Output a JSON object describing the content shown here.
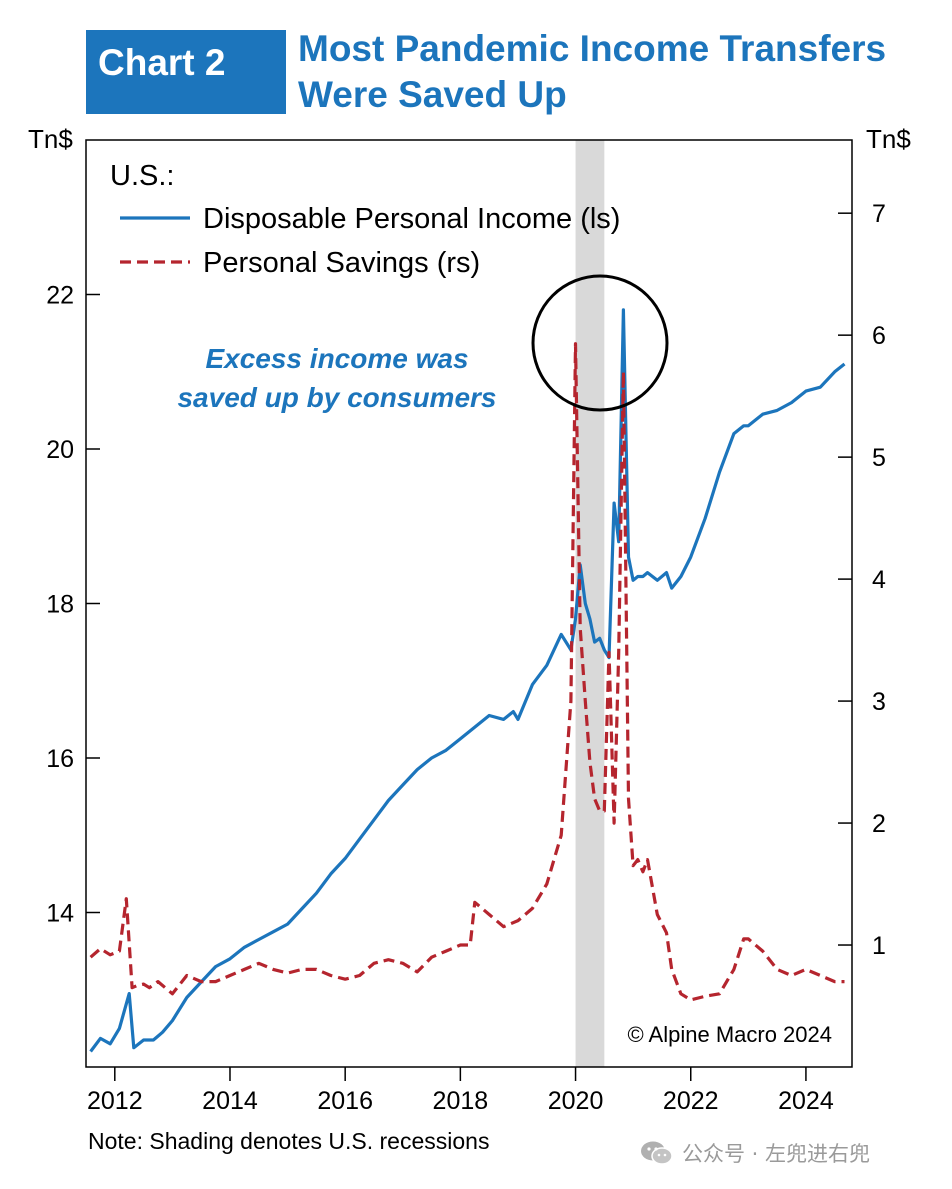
{
  "header": {
    "box_label": "Chart 2",
    "title_line1": "Most Pandemic Income Transfers",
    "title_line2": "Were Saved Up",
    "box_color": "#1c75bc"
  },
  "note": "Note: Shading denotes U.S. recessions",
  "watermark": {
    "text": "公众号 · 左兜进右兜",
    "icon": "wechat-icon"
  },
  "chart_data": {
    "type": "line",
    "left_axis_label": "Tn$",
    "right_axis_label": "Tn$",
    "legend_title": "U.S.:",
    "legend_placement": "top-left",
    "annotation": "Excess income was saved up by consumers",
    "copyright": "© Alpine Macro 2024",
    "xlim": [
      2011.5,
      2024.8
    ],
    "ylim_left": [
      12.0,
      24.0
    ],
    "ylim_right": [
      0.0,
      7.6
    ],
    "x_ticks": [
      2012,
      2014,
      2016,
      2018,
      2020,
      2022,
      2024
    ],
    "x_tick_labels": [
      "2012",
      "2014",
      "2016",
      "2018",
      "2020",
      "2022",
      "2024"
    ],
    "y_ticks_left": [
      14,
      16,
      18,
      20,
      22
    ],
    "y_ticks_right": [
      1,
      2,
      3,
      4,
      5,
      6,
      7
    ],
    "recession_shading": [
      2020.0,
      2020.5
    ],
    "grid": false,
    "colors": {
      "income": "#1c75bc",
      "savings": "#b5252e",
      "shading": "#d9d9d9",
      "annotation": "#1c75bc"
    },
    "series": [
      {
        "name": "Disposable Personal Income (ls)",
        "axis": "left",
        "style": "solid",
        "x": [
          2011.58,
          2011.75,
          2011.92,
          2012.08,
          2012.25,
          2012.33,
          2012.5,
          2012.67,
          2012.75,
          2012.83,
          2013.0,
          2013.25,
          2013.5,
          2013.75,
          2014.0,
          2014.25,
          2014.5,
          2014.75,
          2015.0,
          2015.25,
          2015.5,
          2015.75,
          2016.0,
          2016.25,
          2016.5,
          2016.75,
          2017.0,
          2017.25,
          2017.5,
          2017.75,
          2018.0,
          2018.25,
          2018.5,
          2018.75,
          2018.92,
          2019.0,
          2019.25,
          2019.5,
          2019.75,
          2019.92,
          2020.0,
          2020.08,
          2020.17,
          2020.25,
          2020.33,
          2020.42,
          2020.5,
          2020.58,
          2020.67,
          2020.75,
          2020.83,
          2020.92,
          2021.0,
          2021.08,
          2021.17,
          2021.25,
          2021.42,
          2021.58,
          2021.67,
          2021.83,
          2022.0,
          2022.25,
          2022.5,
          2022.75,
          2022.92,
          2023.0,
          2023.25,
          2023.5,
          2023.75,
          2024.0,
          2024.25,
          2024.5,
          2024.67
        ],
        "y": [
          12.2,
          12.37,
          12.3,
          12.5,
          12.95,
          12.25,
          12.35,
          12.35,
          12.4,
          12.45,
          12.6,
          12.9,
          13.1,
          13.3,
          13.4,
          13.55,
          13.65,
          13.75,
          13.85,
          14.05,
          14.25,
          14.5,
          14.7,
          14.95,
          15.2,
          15.45,
          15.65,
          15.85,
          16.0,
          16.1,
          16.25,
          16.4,
          16.55,
          16.5,
          16.6,
          16.5,
          16.95,
          17.2,
          17.6,
          17.4,
          17.8,
          18.5,
          18.0,
          17.8,
          17.5,
          17.55,
          17.4,
          17.3,
          19.3,
          18.8,
          21.8,
          18.6,
          18.3,
          18.35,
          18.35,
          18.4,
          18.3,
          18.4,
          18.2,
          18.35,
          18.6,
          19.1,
          19.7,
          20.2,
          20.3,
          20.3,
          20.45,
          20.5,
          20.6,
          20.75,
          20.8,
          21.0,
          21.1
        ]
      },
      {
        "name": "Personal Savings (rs)",
        "axis": "right",
        "style": "dashed",
        "x": [
          2011.58,
          2011.75,
          2011.92,
          2012.08,
          2012.2,
          2012.3,
          2012.4,
          2012.5,
          2012.6,
          2012.75,
          2013.0,
          2013.25,
          2013.5,
          2013.75,
          2014.0,
          2014.25,
          2014.5,
          2014.75,
          2015.0,
          2015.25,
          2015.5,
          2015.75,
          2016.0,
          2016.25,
          2016.5,
          2016.75,
          2017.0,
          2017.25,
          2017.5,
          2017.75,
          2018.0,
          2018.17,
          2018.25,
          2018.5,
          2018.75,
          2019.0,
          2019.25,
          2019.5,
          2019.75,
          2019.92,
          2020.0,
          2020.08,
          2020.17,
          2020.25,
          2020.33,
          2020.42,
          2020.5,
          2020.58,
          2020.67,
          2020.75,
          2020.83,
          2020.92,
          2021.0,
          2021.08,
          2021.17,
          2021.25,
          2021.42,
          2021.58,
          2021.67,
          2021.83,
          2022.0,
          2022.25,
          2022.5,
          2022.75,
          2022.92,
          2023.0,
          2023.25,
          2023.5,
          2023.75,
          2024.0,
          2024.25,
          2024.5,
          2024.67
        ],
        "y": [
          0.9,
          0.97,
          0.92,
          0.95,
          1.38,
          0.65,
          0.67,
          0.68,
          0.65,
          0.7,
          0.6,
          0.75,
          0.7,
          0.7,
          0.75,
          0.8,
          0.85,
          0.8,
          0.77,
          0.8,
          0.8,
          0.75,
          0.72,
          0.75,
          0.85,
          0.88,
          0.85,
          0.78,
          0.9,
          0.95,
          1.0,
          1.0,
          1.35,
          1.25,
          1.15,
          1.2,
          1.3,
          1.5,
          1.9,
          3.0,
          5.93,
          3.6,
          3.0,
          2.5,
          2.2,
          2.1,
          2.1,
          3.4,
          2.0,
          3.4,
          5.7,
          2.2,
          1.65,
          1.7,
          1.6,
          1.7,
          1.25,
          1.1,
          0.8,
          0.6,
          0.55,
          0.58,
          0.6,
          0.8,
          1.05,
          1.05,
          0.95,
          0.8,
          0.75,
          0.8,
          0.75,
          0.7,
          0.7
        ]
      }
    ]
  }
}
